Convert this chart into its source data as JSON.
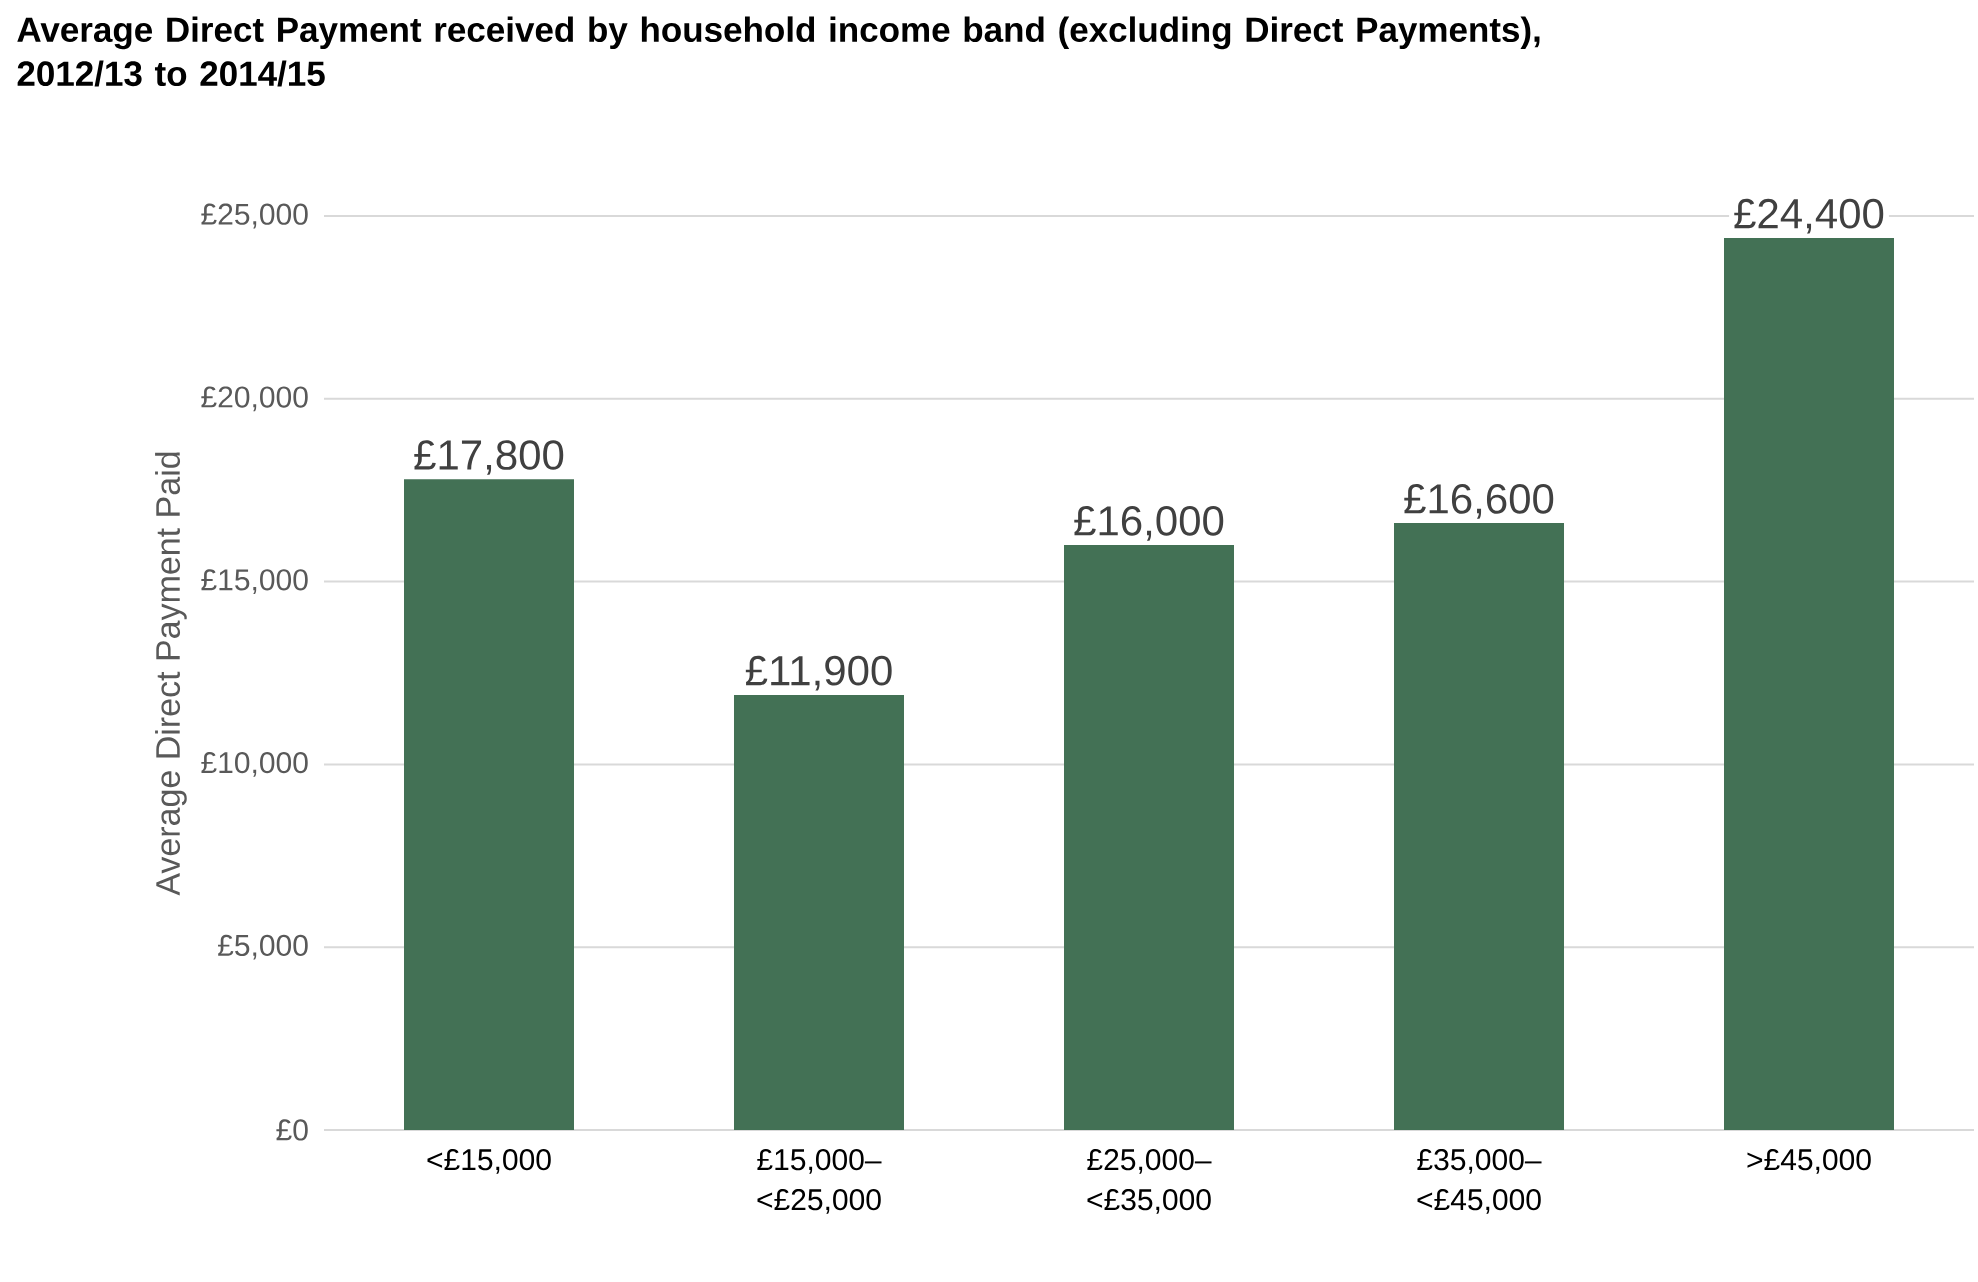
{
  "chart_data": {
    "type": "bar",
    "title": "Average Direct Payment received by household income band (excluding Direct Payments), 2012/13 to 2014/15",
    "ylabel": "Average Direct Payment Paid",
    "categories": [
      "<£15,000",
      "£15,000–<£25,000",
      "£25,000–<£35,000",
      "£35,000–<£45,000",
      ">£45,000"
    ],
    "values": [
      17800,
      11900,
      16000,
      16600,
      24400
    ],
    "value_labels": [
      "£17,800",
      "£11,900",
      "£16,000",
      "£16,600",
      "£24,400"
    ],
    "color": "#437155",
    "ylim": [
      0,
      25000
    ],
    "yticks": [
      {
        "value": 0,
        "label": "£0"
      },
      {
        "value": 5000,
        "label": "£5,000"
      },
      {
        "value": 10000,
        "label": "£10,000"
      },
      {
        "value": 15000,
        "label": "£15,000"
      },
      {
        "value": 20000,
        "label": "£20,000"
      },
      {
        "value": 25000,
        "label": "£25,000"
      }
    ],
    "grid": "y"
  }
}
